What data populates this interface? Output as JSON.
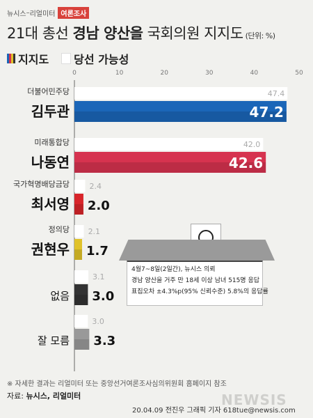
{
  "header": {
    "source_prefix": "뉴시스",
    "source_sep": "–",
    "source_partner": "리얼미터",
    "tag": "여론조사",
    "title_pre": "21대 총선 ",
    "title_bold": "경남 양산을",
    "title_post": " 국회의원 지지도",
    "unit": "(단위: %)"
  },
  "legend": {
    "support": "지지도",
    "win_chance": "당선 가능성"
  },
  "chart_data": {
    "type": "bar",
    "orientation": "horizontal",
    "xlim": [
      0,
      50
    ],
    "x_ticks": [
      0,
      10,
      20,
      30,
      40,
      50
    ],
    "categories": [
      {
        "party": "더불어민주당",
        "candidate": "김두관"
      },
      {
        "party": "미래통합당",
        "candidate": "나동연"
      },
      {
        "party": "국가혁명배당금당",
        "candidate": "최서영"
      },
      {
        "party": "정의당",
        "candidate": "권현우"
      },
      {
        "party": "",
        "candidate": "없음"
      },
      {
        "party": "",
        "candidate": "잘 모름"
      }
    ],
    "series": [
      {
        "name": "당선 가능성",
        "values": [
          47.4,
          42.0,
          2.4,
          2.1,
          3.1,
          3.0
        ],
        "color": "#ffffff"
      },
      {
        "name": "지지도",
        "values": [
          47.2,
          42.6,
          2.0,
          1.7,
          3.0,
          3.3
        ],
        "colors": [
          "#1b66b8",
          "#d6334f",
          "#d8252a",
          "#e0c22a",
          "#333333",
          "#999999"
        ]
      }
    ],
    "labels_win": [
      "47.4",
      "42.0",
      "2.4",
      "2.1",
      "3.1",
      "3.0"
    ],
    "labels_support": [
      "47.2",
      "42.6",
      "2.0",
      "1.7",
      "3.0",
      "3.3"
    ]
  },
  "survey_box": {
    "line1": "4월7~8일(2일간), 뉴시스 의뢰",
    "line2": "경남 양산을 거주 만 18세 이상 남녀 515명 응답",
    "line3": "표집오차 ±4.3%p(95% 신뢰수준) 5.8%의 응답률"
  },
  "footer": {
    "note": "※ 자세한 결과는 리얼미터 또는 중앙선거여론조사심의위원회 홈페이지 참조",
    "source_label": "자료: ",
    "source_value": "뉴시스, 리얼미터",
    "credit": "20.04.09 전진우 그래픽 기자 618tue@newsis.com",
    "watermark": "NEWSIS"
  }
}
